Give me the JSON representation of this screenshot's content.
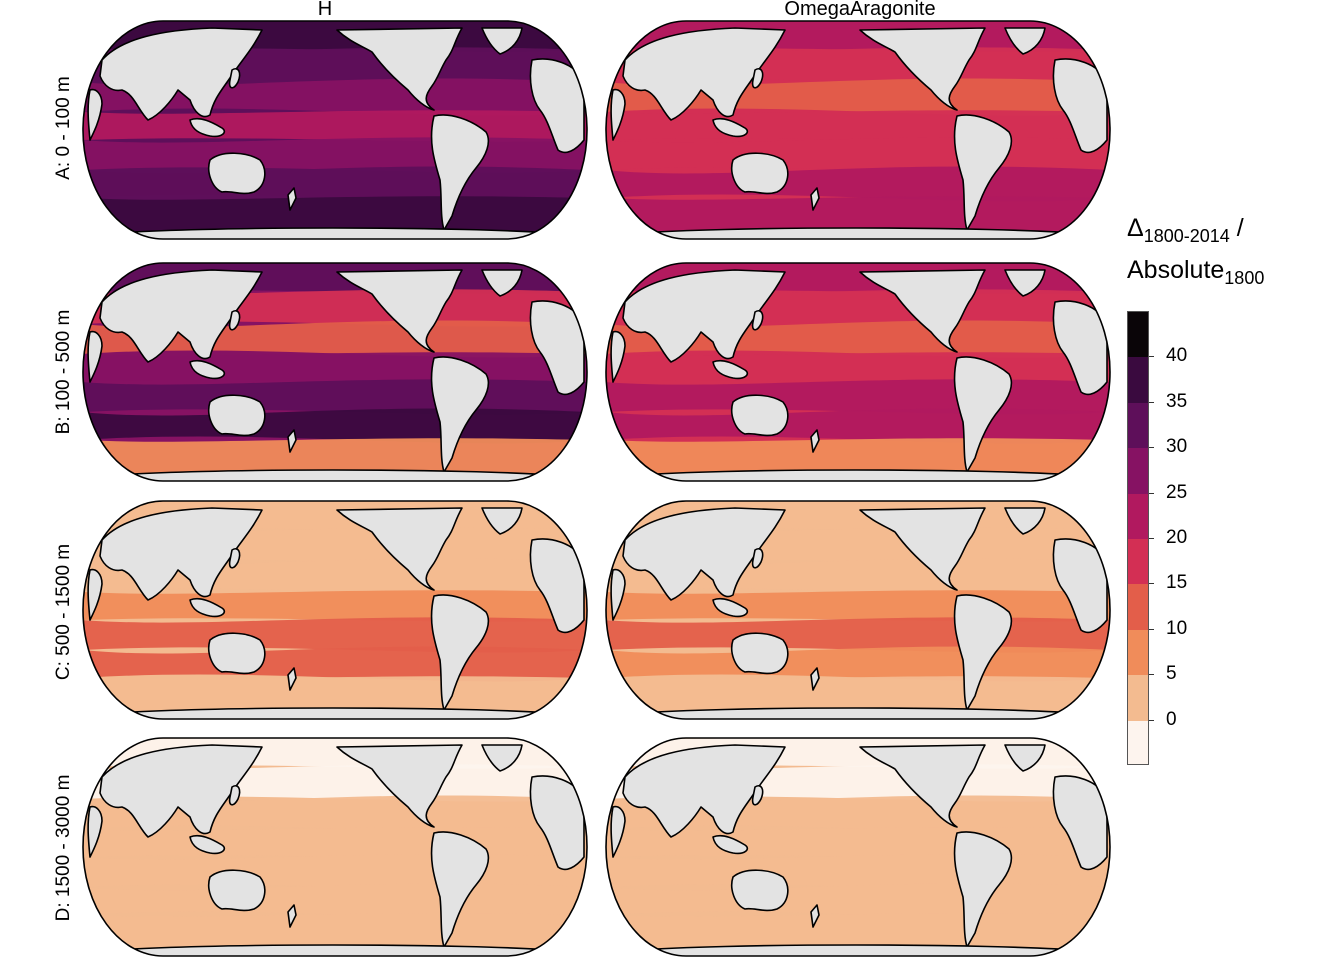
{
  "columns": [
    "H",
    "OmegaAragonite"
  ],
  "rows": [
    "A: 0 - 100 m",
    "B: 100 - 500 m",
    "C: 500 - 1500 m",
    "D: 1500 - 3000 m"
  ],
  "legend": {
    "title_line1_main": "Δ",
    "title_line1_sub": "1800-2014",
    "title_line1_suffix": " /",
    "title_line2_main": "Absolute",
    "title_line2_sub": "1800",
    "levels": [
      {
        "from": -5,
        "to": 0,
        "color": "#fdf4ee"
      },
      {
        "from": 0,
        "to": 5,
        "color": "#f3bb90"
      },
      {
        "from": 5,
        "to": 10,
        "color": "#f08c5a"
      },
      {
        "from": 10,
        "to": 15,
        "color": "#e35e4a"
      },
      {
        "from": 15,
        "to": 20,
        "color": "#d32f54"
      },
      {
        "from": 20,
        "to": 25,
        "color": "#b1195f"
      },
      {
        "from": 25,
        "to": 30,
        "color": "#861263"
      },
      {
        "from": 30,
        "to": 35,
        "color": "#5e0f5a"
      },
      {
        "from": 35,
        "to": 40,
        "color": "#3a0a3f"
      },
      {
        "from": 40,
        "to": 45,
        "color": "#0a0508"
      }
    ],
    "ticks": [
      "40",
      "35",
      "30",
      "25",
      "20",
      "15",
      "10",
      "5",
      "0"
    ]
  },
  "land_color": "#e3e3e3",
  "coast_color": "#000000",
  "map_data": {
    "A": {
      "H": {
        "base": "#5e0f5a",
        "bands": [
          "#3a0a3f",
          "#5e0f5a",
          "#861263",
          "#b1195f",
          "#861263",
          "#5e0f5a",
          "#3a0a3f"
        ]
      },
      "OmegaAragonite": {
        "base": "#d32f54",
        "bands": [
          "#b1195f",
          "#d32f54",
          "#e35e4a",
          "#d32f54",
          "#d32f54",
          "#b1195f",
          "#b1195f"
        ]
      }
    },
    "B": {
      "H": {
        "base": "#861263",
        "bands": [
          "#5e0f5a",
          "#d32f54",
          "#e35e4a",
          "#861263",
          "#5e0f5a",
          "#3a0a3f",
          "#f08c5a"
        ]
      },
      "OmegaAragonite": {
        "base": "#d32f54",
        "bands": [
          "#b1195f",
          "#d32f54",
          "#e35e4a",
          "#d32f54",
          "#b1195f",
          "#b1195f",
          "#f08c5a"
        ]
      }
    },
    "C": {
      "H": {
        "base": "#f3bb90",
        "bands": [
          "#f3bb90",
          "#f3bb90",
          "#f3bb90",
          "#f08c5a",
          "#e35e4a",
          "#e35e4a",
          "#f3bb90"
        ]
      },
      "OmegaAragonite": {
        "base": "#f3bb90",
        "bands": [
          "#f3bb90",
          "#f3bb90",
          "#f3bb90",
          "#f08c5a",
          "#e35e4a",
          "#f08c5a",
          "#f3bb90"
        ]
      }
    },
    "D": {
      "H": {
        "base": "#f3bb90",
        "bands": [
          "#fdf4ee",
          "#fdf4ee",
          "#f3bb90",
          "#f3bb90",
          "#f3bb90",
          "#f3bb90",
          "#f3bb90"
        ]
      },
      "OmegaAragonite": {
        "base": "#f3bb90",
        "bands": [
          "#fdf4ee",
          "#fdf4ee",
          "#f3bb90",
          "#f3bb90",
          "#f3bb90",
          "#f3bb90",
          "#f3bb90"
        ]
      }
    }
  }
}
